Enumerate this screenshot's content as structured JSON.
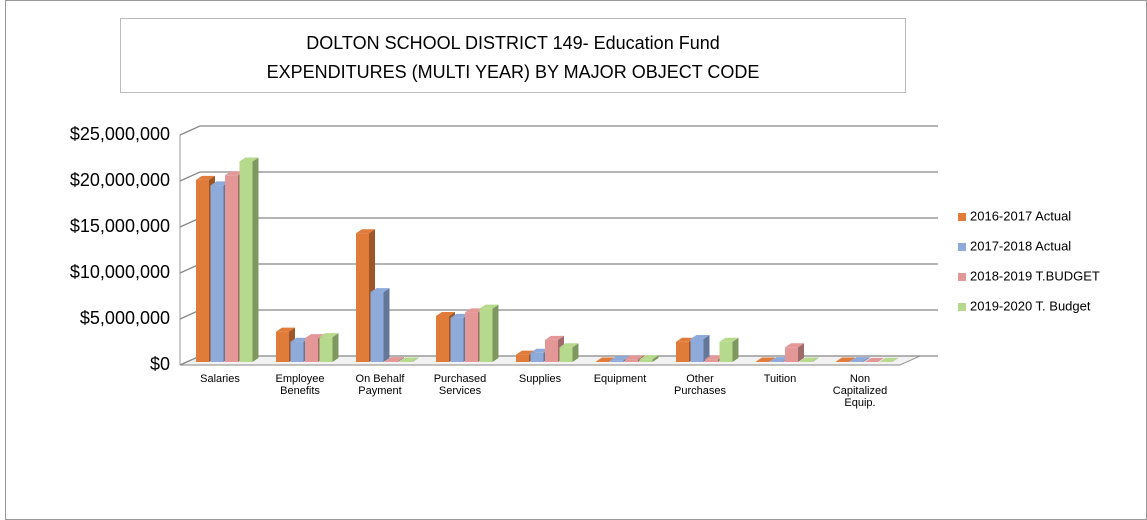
{
  "chart_data": {
    "type": "bar3d",
    "title": "DOLTON SCHOOL DISTRICT 149- Education Fund",
    "subtitle": "EXPENDITURES (MULTI YEAR) BY MAJOR OBJECT CODE",
    "categories": [
      "Salaries",
      "Employee Benefits",
      "On Behalf Payment",
      "Purchased Services",
      "Supplies",
      "Equipment",
      "Other Purchases",
      "Tuition",
      "Non Capitalized Equip."
    ],
    "series": [
      {
        "name": "2016-2017 Actual",
        "color": "#e07b39",
        "values": [
          19800000,
          3300000,
          14000000,
          5000000,
          800000,
          50000,
          2200000,
          50000,
          50000
        ]
      },
      {
        "name": "2017-2018 Actual",
        "color": "#8eaadb",
        "values": [
          19200000,
          2200000,
          7600000,
          4800000,
          1000000,
          200000,
          2500000,
          100000,
          100000
        ]
      },
      {
        "name": "2018-2019 T.BUDGET",
        "color": "#e39897",
        "values": [
          20300000,
          2600000,
          100000,
          5400000,
          2400000,
          300000,
          300000,
          1600000,
          0
        ]
      },
      {
        "name": "2019-2020 T. Budget",
        "color": "#b6d98b",
        "values": [
          21800000,
          2700000,
          50000,
          5800000,
          1600000,
          300000,
          2200000,
          50000,
          20000
        ]
      }
    ],
    "ylim": [
      0,
      25000000
    ],
    "yticks": [
      {
        "value": 0,
        "label": "$0"
      },
      {
        "value": 5000000,
        "label": "$5,000,000"
      },
      {
        "value": 10000000,
        "label": "$10,000,000"
      },
      {
        "value": 15000000,
        "label": "$15,000,000"
      },
      {
        "value": 20000000,
        "label": "$20,000,000"
      },
      {
        "value": 25000000,
        "label": "$25,000,000"
      }
    ],
    "grid": true,
    "legend": "right"
  }
}
